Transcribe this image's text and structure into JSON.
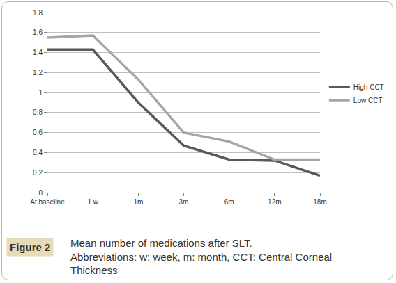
{
  "chart_data": {
    "type": "line",
    "title": "Mean number of medications after SLT.",
    "subtitle": "Abbreviations: w: week, m: month, CCT: Central Corneal Thickness",
    "annotations": [
      "Figure 2"
    ],
    "categories": [
      "At baseline",
      "1 w",
      "1m",
      "3m",
      "6m",
      "12m",
      "18m"
    ],
    "series": [
      {
        "name": "High CCT",
        "color": "#595959",
        "values": [
          1.43,
          1.43,
          0.9,
          0.47,
          0.33,
          0.32,
          0.17
        ]
      },
      {
        "name": "Low CCT",
        "color": "#a6a6a6",
        "values": [
          1.55,
          1.57,
          1.13,
          0.6,
          0.51,
          0.33,
          0.33
        ]
      }
    ],
    "ylim": [
      0,
      1.8
    ],
    "yticks": [
      0,
      0.2,
      0.4,
      0.6,
      0.8,
      1,
      1.2,
      1.4,
      1.6,
      1.8
    ],
    "grid": true,
    "legend": "right"
  }
}
